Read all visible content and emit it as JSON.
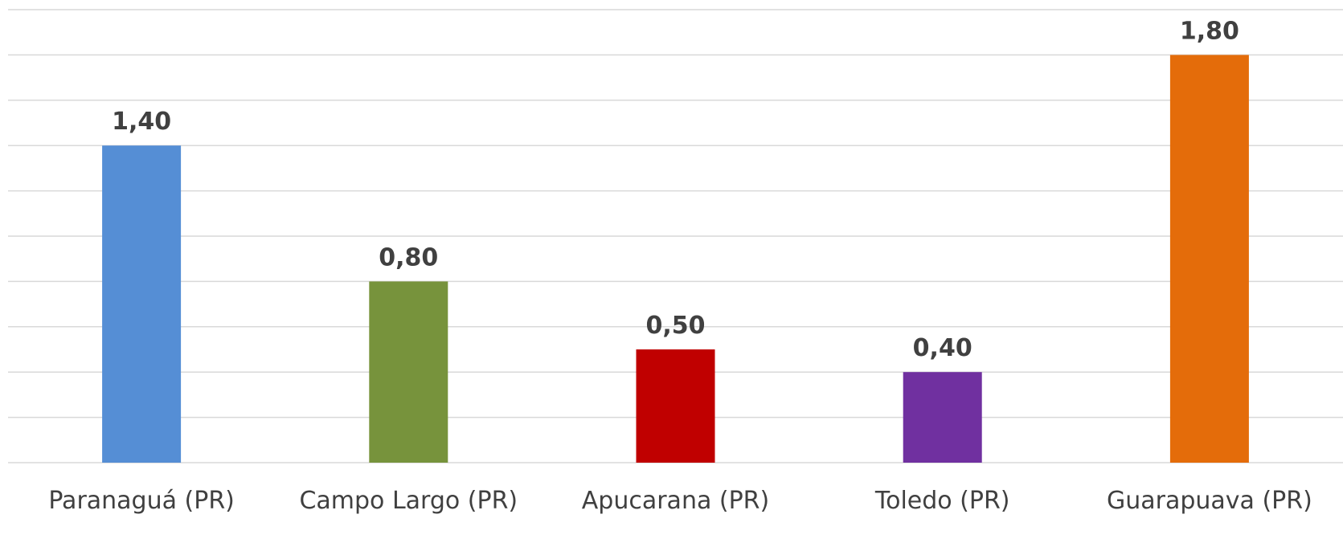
{
  "chart_data": {
    "type": "bar",
    "categories": [
      "Paranaguá (PR)",
      "Campo Largo (PR)",
      "Apucarana (PR)",
      "Toledo (PR)",
      "Guarapuava (PR)"
    ],
    "values": [
      1.4,
      0.8,
      0.5,
      0.4,
      1.8
    ],
    "data_labels": [
      "1,40",
      "0,80",
      "0,50",
      "0,40",
      "1,80"
    ],
    "colors": [
      "#558ed5",
      "#77933c",
      "#c00000",
      "#7030a0",
      "#e46c0a"
    ],
    "ylim": [
      0,
      2.0
    ],
    "grid": true,
    "legend": "none"
  }
}
